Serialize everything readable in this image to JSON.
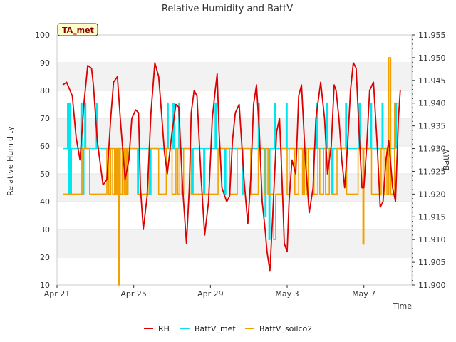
{
  "chart_data": {
    "type": "line",
    "title": "Relative Humidity and BattV",
    "xlabel": "Time",
    "ylabel_left": "Relative Humidity",
    "ylabel_right": "BattV",
    "badge": "TA_met",
    "xlim": [
      0,
      18.5
    ],
    "x_ticks": [
      {
        "x": 0,
        "label": "Apr 21"
      },
      {
        "x": 4,
        "label": "Apr 25"
      },
      {
        "x": 8,
        "label": "Apr 29"
      },
      {
        "x": 12,
        "label": "May 3"
      },
      {
        "x": 16,
        "label": "May 7"
      }
    ],
    "ylim_left": [
      10,
      100
    ],
    "yticks_left": [
      "10",
      "20",
      "30",
      "40",
      "50",
      "60",
      "70",
      "80",
      "90",
      "100"
    ],
    "ylim_right": [
      11.9,
      11.955
    ],
    "yticks_right": [
      "11.900",
      "11.905",
      "11.910",
      "11.915",
      "11.920",
      "11.925",
      "11.930",
      "11.935",
      "11.940",
      "11.945",
      "11.950",
      "11.955"
    ],
    "grid": "alternating horizontal bands",
    "legend_position": "bottom-center",
    "series": [
      {
        "name": "RH",
        "color": "#dd0000",
        "axis": "left",
        "x": [
          0.3,
          0.5,
          0.8,
          1.0,
          1.2,
          1.4,
          1.6,
          1.8,
          1.9,
          2.1,
          2.4,
          2.6,
          2.8,
          2.95,
          3.15,
          3.3,
          3.55,
          3.75,
          3.9,
          4.1,
          4.25,
          4.35,
          4.5,
          4.7,
          4.9,
          5.1,
          5.3,
          5.45,
          5.6,
          5.75,
          6.0,
          6.2,
          6.35,
          6.55,
          6.75,
          6.9,
          7.0,
          7.15,
          7.3,
          7.5,
          7.7,
          7.9,
          8.1,
          8.25,
          8.35,
          8.45,
          8.6,
          8.85,
          9.0,
          9.15,
          9.3,
          9.5,
          9.75,
          9.95,
          10.1,
          10.25,
          10.4,
          10.55,
          10.7,
          10.85,
          10.95,
          11.1,
          11.25,
          11.45,
          11.6,
          11.75,
          11.85,
          12.0,
          12.1,
          12.25,
          12.45,
          12.6,
          12.75,
          12.95,
          13.15,
          13.35,
          13.5,
          13.75,
          13.95,
          14.1,
          14.3,
          14.45,
          14.55,
          14.7,
          14.85,
          15.0,
          15.15,
          15.3,
          15.45,
          15.6,
          15.75,
          15.9,
          16.0,
          16.15,
          16.3,
          16.5,
          16.7,
          16.85,
          17.0,
          17.15,
          17.3,
          17.5,
          17.65,
          17.8,
          17.9
        ],
        "y": [
          82,
          83,
          78,
          63,
          55,
          75,
          89,
          88,
          82,
          62,
          46,
          48,
          70,
          83,
          85,
          70,
          48,
          55,
          70,
          73,
          72,
          45,
          30,
          42,
          72,
          90,
          85,
          72,
          58,
          50,
          65,
          75,
          74,
          45,
          25,
          45,
          72,
          80,
          78,
          50,
          28,
          40,
          70,
          80,
          86,
          65,
          45,
          40,
          42,
          62,
          72,
          75,
          48,
          32,
          48,
          75,
          82,
          65,
          40,
          30,
          22,
          15,
          35,
          65,
          70,
          45,
          25,
          22,
          40,
          55,
          50,
          78,
          82,
          55,
          36,
          45,
          70,
          83,
          70,
          50,
          60,
          82,
          80,
          70,
          55,
          45,
          60,
          80,
          90,
          88,
          65,
          45,
          45,
          60,
          80,
          83,
          60,
          38,
          40,
          55,
          62,
          45,
          40,
          70,
          80
        ]
      },
      {
        "name": "BattV_met",
        "color": "#00e5ee",
        "axis": "right",
        "x": [
          0.3,
          0.5,
          0.55,
          0.6,
          0.65,
          0.7,
          0.75,
          0.8,
          1.2,
          1.25,
          1.3,
          1.4,
          1.45,
          1.5,
          2.0,
          2.05,
          2.1,
          2.8,
          3.0,
          3.05,
          3.1,
          3.6,
          3.65,
          3.7,
          4.15,
          4.2,
          4.25,
          4.8,
          4.85,
          4.9,
          5.7,
          5.75,
          5.8,
          6.0,
          6.05,
          6.1,
          6.3,
          6.35,
          6.4,
          6.9,
          7.0,
          7.05,
          7.1,
          7.6,
          7.65,
          7.7,
          8.2,
          8.25,
          8.3,
          8.6,
          8.7,
          8.75,
          8.8,
          9.5,
          9.6,
          9.65,
          9.7,
          10.3,
          10.45,
          10.5,
          10.55,
          10.8,
          10.85,
          10.9,
          11.0,
          11.05,
          11.1,
          11.3,
          11.35,
          11.4,
          11.9,
          11.95,
          12.0,
          12.8,
          12.85,
          12.9,
          13.5,
          13.55,
          13.6,
          14.0,
          14.05,
          14.1,
          14.3,
          14.35,
          14.4,
          15.0,
          15.05,
          15.1,
          15.7,
          15.75,
          15.8,
          16.3,
          16.35,
          16.4,
          16.9,
          16.95,
          17.0,
          17.5,
          17.6,
          17.65,
          17.7
        ],
        "y": [
          11.93,
          11.93,
          11.94,
          11.92,
          11.94,
          11.92,
          11.93,
          11.93,
          11.93,
          11.94,
          11.92,
          11.93,
          11.94,
          11.93,
          11.93,
          11.94,
          11.93,
          11.93,
          11.93,
          11.92,
          11.93,
          11.93,
          11.92,
          11.93,
          11.93,
          11.92,
          11.93,
          11.93,
          11.92,
          11.93,
          11.93,
          11.94,
          11.93,
          11.93,
          11.94,
          11.93,
          11.93,
          11.94,
          11.93,
          11.93,
          11.93,
          11.92,
          11.93,
          11.93,
          11.92,
          11.93,
          11.93,
          11.94,
          11.93,
          11.93,
          11.93,
          11.92,
          11.93,
          11.93,
          11.93,
          11.92,
          11.93,
          11.93,
          11.93,
          11.94,
          11.93,
          11.93,
          11.915,
          11.93,
          11.93,
          11.91,
          11.93,
          11.93,
          11.94,
          11.93,
          11.93,
          11.94,
          11.93,
          11.93,
          11.92,
          11.93,
          11.93,
          11.94,
          11.93,
          11.93,
          11.94,
          11.93,
          11.93,
          11.92,
          11.93,
          11.93,
          11.94,
          11.93,
          11.93,
          11.94,
          11.93,
          11.93,
          11.94,
          11.93,
          11.93,
          11.94,
          11.93,
          11.93,
          11.93,
          11.94,
          11.93
        ]
      },
      {
        "name": "BattV_soilco2",
        "color": "#f0a000",
        "axis": "right",
        "x": [
          0.3,
          1.2,
          1.3,
          1.6,
          1.7,
          2.5,
          2.6,
          2.7,
          2.8,
          2.9,
          3.0,
          3.1,
          3.15,
          3.2,
          3.25,
          3.3,
          3.4,
          3.5,
          3.6,
          3.65,
          3.7,
          4.1,
          4.2,
          4.7,
          4.8,
          5.2,
          5.3,
          5.6,
          5.7,
          5.9,
          6.0,
          6.2,
          6.3,
          6.4,
          6.5,
          6.6,
          6.9,
          7.0,
          8.3,
          8.4,
          8.9,
          9.0,
          9.3,
          9.4,
          10.0,
          10.1,
          10.4,
          10.5,
          10.7,
          10.8,
          10.9,
          11.0,
          11.2,
          11.3,
          11.4,
          11.6,
          11.7,
          11.9,
          12.0,
          12.1,
          12.3,
          12.4,
          12.6,
          12.8,
          12.9,
          13.0,
          13.1,
          13.3,
          13.4,
          13.6,
          13.7,
          13.9,
          14.0,
          14.2,
          14.3,
          14.4,
          14.6,
          15.0,
          15.1,
          15.6,
          15.7,
          15.9,
          15.95,
          16.0,
          16.3,
          16.4,
          16.8,
          16.9,
          17.0,
          17.1,
          17.2,
          17.3,
          17.4,
          17.6,
          17.7,
          17.8
        ],
        "y": [
          11.92,
          11.92,
          11.93,
          11.93,
          11.92,
          11.92,
          11.93,
          11.92,
          11.93,
          11.92,
          11.93,
          11.92,
          11.93,
          11.9,
          11.93,
          11.92,
          11.93,
          11.92,
          11.93,
          11.92,
          11.93,
          11.93,
          11.92,
          11.92,
          11.93,
          11.93,
          11.92,
          11.92,
          11.93,
          11.93,
          11.92,
          11.93,
          11.92,
          11.93,
          11.92,
          11.93,
          11.93,
          11.92,
          11.92,
          11.93,
          11.93,
          11.92,
          11.92,
          11.93,
          11.93,
          11.92,
          11.92,
          11.93,
          11.93,
          11.92,
          11.93,
          11.92,
          11.92,
          11.91,
          11.92,
          11.92,
          11.93,
          11.93,
          11.92,
          11.93,
          11.93,
          11.92,
          11.93,
          11.92,
          11.93,
          11.92,
          11.93,
          11.93,
          11.92,
          11.93,
          11.92,
          11.93,
          11.92,
          11.93,
          11.92,
          11.92,
          11.93,
          11.93,
          11.92,
          11.92,
          11.93,
          11.93,
          11.909,
          11.93,
          11.93,
          11.92,
          11.92,
          11.93,
          11.92,
          11.93,
          11.92,
          11.95,
          11.92,
          11.94,
          11.94,
          11.94
        ]
      }
    ]
  }
}
